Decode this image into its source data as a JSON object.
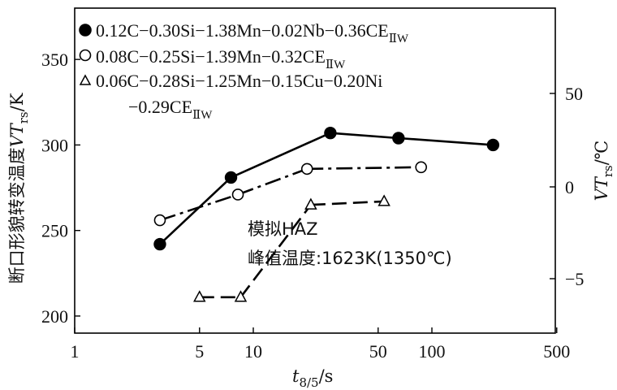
{
  "chart_data": {
    "type": "line",
    "xlabel_main": "t",
    "xlabel_sub": "8/5",
    "xlabel_unit": "/s",
    "ylabel_left": "断口形貌转变温度",
    "ylabel_left_var": "VT",
    "ylabel_left_sub": "rs",
    "ylabel_left_unit": "/K",
    "ylabel_right_var": "VT",
    "ylabel_right_sub": "rs",
    "ylabel_right_unit": "/℃",
    "x_scale": "log",
    "xlim": [
      1,
      1000
    ],
    "xticks": [
      1,
      5,
      10,
      50,
      100,
      500
    ],
    "xtick_labels": [
      "1",
      "5",
      "10",
      "50",
      "100",
      "500"
    ],
    "ylim": [
      190,
      380
    ],
    "yticks": [
      200,
      250,
      300,
      350
    ],
    "ytick_labels": [
      "200",
      "250",
      "300",
      "350"
    ],
    "right_yticks": [
      "50",
      "0",
      "−5"
    ],
    "grid": false,
    "legend_position": "top-left",
    "series": [
      {
        "name": "0.12C−0.30Si−1.38Mn−0.02Nb−0.36CE",
        "name_sub": "ⅡW",
        "marker": "filled-circle",
        "line_style": "solid",
        "x": [
          3,
          7.5,
          27,
          65,
          220
        ],
        "y": [
          242,
          281,
          307,
          304,
          300
        ]
      },
      {
        "name": "0.08C−0.25Si−1.39Mn−0.32CE",
        "name_sub": "ⅡW",
        "marker": "open-circle",
        "line_style": "dash-dot",
        "x": [
          3,
          8.2,
          20,
          87
        ],
        "y": [
          256,
          271,
          286,
          287
        ]
      },
      {
        "name": "0.06C−0.28Si−1.25Mn−0.15Cu−0.20Ni",
        "name_line2": "−0.29CE",
        "name_sub": "ⅡW",
        "marker": "open-triangle",
        "line_style": "dashed",
        "x": [
          5,
          8.5,
          21,
          54
        ],
        "y": [
          211,
          211,
          265,
          267
        ]
      }
    ],
    "annotations": {
      "line1": "模拟HAZ",
      "line2": "峰值温度:1623K(1350℃)"
    }
  }
}
